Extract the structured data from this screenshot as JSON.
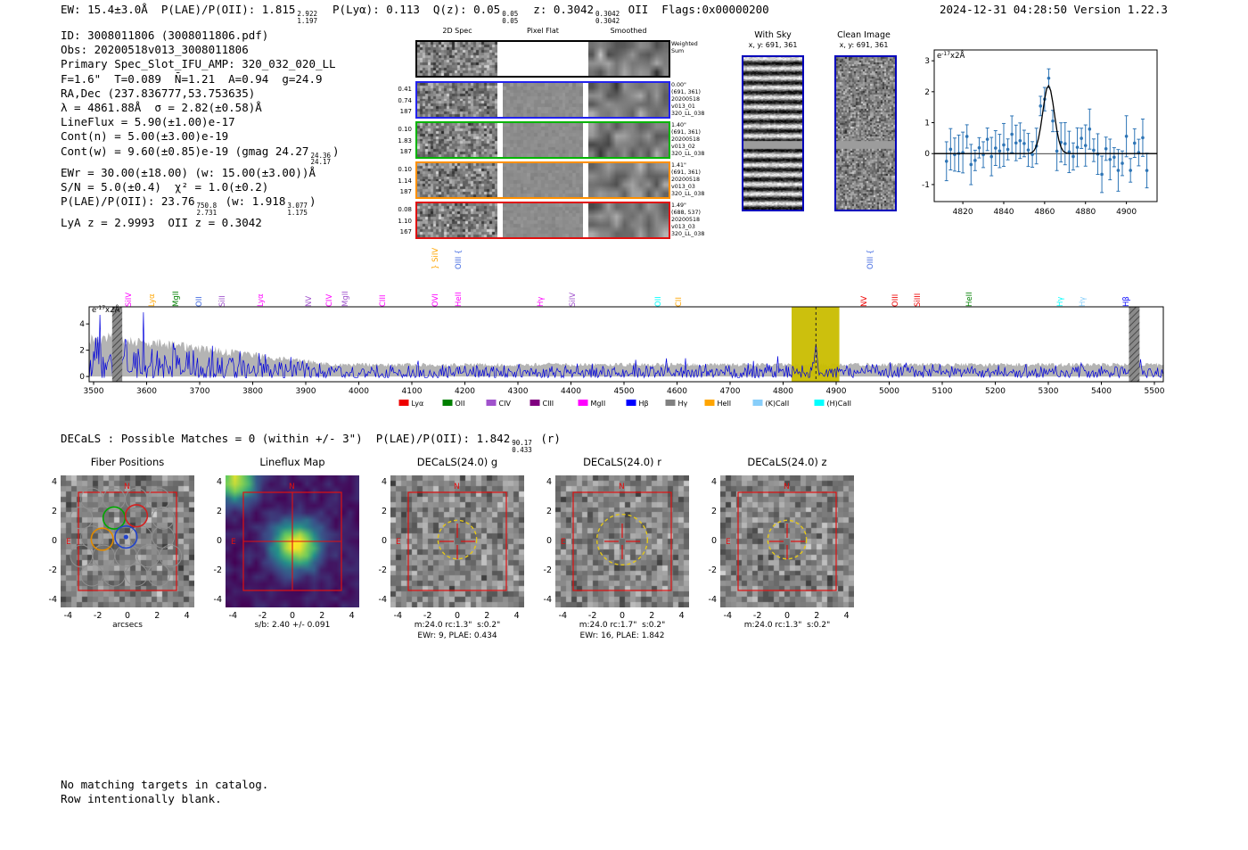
{
  "header": {
    "left_segments": [
      {
        "t": "EW: 15.4±3.0Å  P(LAE)/P(OII): 1.815"
      },
      {
        "sup": "2.922",
        "sub": "1.197"
      },
      {
        "t": "  P(Lyα): 0.113  Q(z): 0.05"
      },
      {
        "sup": "0.05",
        "sub": "0.05"
      },
      {
        "t": "  z: 0.3042"
      },
      {
        "sup": "0.3042",
        "sub": "0.3042"
      },
      {
        "t": " OII  Flags:0x00000200"
      }
    ],
    "right": "2024-12-31 04:28:50  Version 1.22.3"
  },
  "info_lines": [
    [
      {
        "t": "ID: 3008011806 (3008011806.pdf)"
      }
    ],
    [
      {
        "t": "Obs: 20200518v013_3008011806"
      }
    ],
    [
      {
        "t": "Primary Spec_Slot_IFU_AMP: 320_032_020_LL"
      }
    ],
    [
      {
        "t": "F=1.6\"  T=0.089  N̄=1.21  A=0.94  g=24.9"
      }
    ],
    [
      {
        "t": "RA,Dec (237.836777,53.753635)"
      }
    ],
    [
      {
        "t": "λ = 4861.88Å  σ = 2.82(±0.58)Å"
      }
    ],
    [
      {
        "t": "LineFlux = 5.90(±1.00)e-17"
      }
    ],
    [
      {
        "t": "Cont(n) = 5.00(±3.00)e-19"
      }
    ],
    [
      {
        "t": "Cont(w) = 9.60(±0.85)e-19 (gmag 24.27"
      },
      {
        "sup": "24.36",
        "sub": "24.17"
      },
      {
        "t": ")"
      }
    ],
    [
      {
        "t": "EWr = 30.00(±18.00) (w: 15.00(±3.00))Å"
      }
    ],
    [
      {
        "t": "S/N = 5.0(±0.4)  χ² = 1.0(±0.2)"
      }
    ],
    [
      {
        "t": "P(LAE)/P(OII): 23.76"
      },
      {
        "sup": "750.8",
        "sub": "2.731"
      },
      {
        "t": " (w: 1.918"
      },
      {
        "sup": "3.077",
        "sub": "1.175"
      },
      {
        "t": ")"
      }
    ],
    [
      {
        "t": "LyA z = 2.9993  OII z = 0.3042"
      }
    ]
  ],
  "spec2d": {
    "col_headers": [
      "2D Spec",
      "Pixel Flat",
      "Smoothed"
    ],
    "weighted_sum_label": [
      "Weighted",
      "Sum"
    ],
    "rows": [
      {
        "border": "#000000",
        "left": [],
        "right": []
      },
      {
        "border": "#2222ee",
        "left": [
          "0.41",
          "0.74",
          "187"
        ],
        "right": [
          "0.00\"",
          "(691, 361)",
          "20200518",
          "v013_01",
          "320_LL_038"
        ]
      },
      {
        "border": "#00b400",
        "left": [
          "0.10",
          "1.83",
          "187"
        ],
        "right": [
          "1.40\"",
          "(691, 361)",
          "20200518",
          "v013_02",
          "320_LL_038"
        ]
      },
      {
        "border": "#ff9000",
        "left": [
          "0.10",
          "1.14",
          "187"
        ],
        "right": [
          "1.41\"",
          "(691, 361)",
          "20200518",
          "v013_03",
          "320_LL_038"
        ]
      },
      {
        "border": "#e01010",
        "left": [
          "0.08",
          "1.10",
          "167"
        ],
        "right": [
          "1.49\"",
          "(688, 537)",
          "20200518",
          "v013_03",
          "320_LL_038"
        ]
      }
    ]
  },
  "with_sky": {
    "title": "With Sky",
    "coords": "x, y: 691, 361"
  },
  "clean_image": {
    "title": "Clean Image",
    "coords": "x, y: 691, 361"
  },
  "decals_segments": [
    {
      "t": "DECaLS : Possible Matches = 0 (within +/- 3\")  P(LAE)/P(OII): 1.842"
    },
    {
      "sup": "90.17",
      "sub": "0.433"
    },
    {
      "t": " (r)"
    }
  ],
  "footer_lines": [
    "No matching targets in catalog.",
    "Row intentionally blank."
  ],
  "chart_data": [
    {
      "id": "line_fit_zoom",
      "type": "scatter",
      "annotation": {
        "base": "e",
        "exp": "-17",
        "rest": "x2Å"
      },
      "xlim": [
        4806,
        4915
      ],
      "ylim": [
        -1.55,
        3.35
      ],
      "xticks": [
        4820,
        4840,
        4860,
        4880,
        4900
      ],
      "yticks": [
        -1,
        0,
        1,
        2,
        3
      ],
      "fit_curve": {
        "shape": "gaussian",
        "center": 4861.88,
        "sigma": 2.82,
        "amplitude": 2.2,
        "baseline": 0,
        "color": "#000000"
      },
      "data_points": {
        "style": "errorbar",
        "color": "#2e75b6",
        "n": 50,
        "x_start": 4812,
        "x_step": 2,
        "noise_sigma": 0.4,
        "seed": 9,
        "note": "noisy flux samples around 0 rising to ~2.2 at 4861.88, consistent with fitted gaussian"
      }
    },
    {
      "id": "full_spectrum",
      "type": "line",
      "ylabel": {
        "base": "e",
        "exp": "-17",
        "rest": "x2Å"
      },
      "xlim": [
        3492,
        5517
      ],
      "ylim": [
        -0.4,
        5.3
      ],
      "xticks": [
        3500,
        3600,
        3700,
        3800,
        3900,
        4000,
        4100,
        4200,
        4300,
        4400,
        4500,
        4600,
        4700,
        4800,
        4900,
        5000,
        5100,
        5200,
        5300,
        5400,
        5500
      ],
      "yticks": [
        0,
        2,
        4
      ],
      "flux_series": {
        "color": "#0000dd",
        "seed": 23,
        "baseline_level": 0.55,
        "blue_end_max": 3.2,
        "peak": {
          "center": 4861.88,
          "sigma": 2.82,
          "amplitude": 2.0
        }
      },
      "error_band": {
        "color": "#b4b4b4"
      },
      "highlight_band": {
        "x0": 4816,
        "x1": 4906,
        "color": "#c9bd00"
      },
      "detection_line": {
        "x": 4861.88,
        "style": "dashed",
        "color": "#222222"
      },
      "masked_regions": [
        {
          "x0": 3535,
          "x1": 3554
        },
        {
          "x0": 5452,
          "x1": 5472
        }
      ],
      "line_labels": [
        {
          "label": "SiIV",
          "wave": 3564,
          "color": "#ff00ff",
          "tier": 0
        },
        {
          "label": "Lyα",
          "wave": 3607,
          "color": "#ffa500",
          "tier": 0
        },
        {
          "label": "MgII",
          "wave": 3653,
          "color": "#008000",
          "tier": 0
        },
        {
          "label": "OII",
          "wave": 3697,
          "color": "#4169e1",
          "tier": 0
        },
        {
          "label": "SiII",
          "wave": 3740,
          "color": "#a052cc",
          "tier": 0
        },
        {
          "label": "Lyα",
          "wave": 3812,
          "color": "#ff00ff",
          "tier": 0
        },
        {
          "label": "NV",
          "wave": 3904,
          "color": "#a052cc",
          "tier": 0
        },
        {
          "label": "CIV",
          "wave": 3942,
          "color": "#ff00ff",
          "tier": 0
        },
        {
          "label": "MgII",
          "wave": 3972,
          "color": "#a052cc",
          "tier": 0
        },
        {
          "label": "CIII",
          "wave": 4043,
          "color": "#ff00ff",
          "tier": 0
        },
        {
          "label": "OVI",
          "wave": 4142,
          "color": "#ff00ff",
          "tier": 0
        },
        {
          "label": "} SiIV",
          "wave": 4142,
          "color": "#ffa500",
          "tier": 1
        },
        {
          "label": "HeII",
          "wave": 4185,
          "color": "#ff00ff",
          "tier": 0
        },
        {
          "label": "OIII {",
          "wave": 4185,
          "color": "#4169e1",
          "tier": 1
        },
        {
          "label": "Hγ",
          "wave": 4341,
          "color": "#ff00ff",
          "tier": 0
        },
        {
          "label": "SiIV",
          "wave": 4400,
          "color": "#a052cc",
          "tier": 0
        },
        {
          "label": "OII",
          "wave": 4562,
          "color": "#00ffff",
          "tier": 0
        },
        {
          "label": "CII",
          "wave": 4601,
          "color": "#ffa500",
          "tier": 0
        },
        {
          "label": "NV",
          "wave": 4950,
          "color": "#ee0000",
          "tier": 0
        },
        {
          "label": "OIII {",
          "wave": 4962,
          "color": "#4169e1",
          "tier": 1
        },
        {
          "label": "OIII",
          "wave": 5010,
          "color": "#ee0000",
          "tier": 0
        },
        {
          "label": "SiIII",
          "wave": 5052,
          "color": "#ee0000",
          "tier": 0
        },
        {
          "label": "HeII",
          "wave": 5148,
          "color": "#008000",
          "tier": 0
        },
        {
          "label": "Hγ",
          "wave": 5320,
          "color": "#00ffff",
          "tier": 0
        },
        {
          "label": "Hγ",
          "wave": 5362,
          "color": "#87cefa",
          "tier": 0
        },
        {
          "label": "Hβ",
          "wave": 5444,
          "color": "#0000ff",
          "tier": 0
        }
      ],
      "legend": [
        {
          "label": "Lyα",
          "color": "#ee0000"
        },
        {
          "label": "OII",
          "color": "#008000"
        },
        {
          "label": "CIV",
          "color": "#a052cc"
        },
        {
          "label": "CIII",
          "color": "#800080"
        },
        {
          "label": "MgII",
          "color": "#ff00ff"
        },
        {
          "label": "Hβ",
          "color": "#0000ff"
        },
        {
          "label": "Hγ",
          "color": "#808080"
        },
        {
          "label": "HeII",
          "color": "#ffa500"
        },
        {
          "label": "(K)CaII",
          "color": "#87cefa"
        },
        {
          "label": "(H)CaII",
          "color": "#00ffff"
        }
      ],
      "legend_position": "bottom"
    },
    {
      "id": "fiber_positions",
      "type": "image-cutout",
      "title": "Fiber Positions",
      "xlabel": "arcsecs",
      "ticks": [
        -4,
        -2,
        0,
        2,
        4
      ],
      "extent_arcsec": [
        -4.5,
        4.5
      ],
      "overlay": {
        "red_box_half_arcsec": 3.3,
        "fiber_radius_arcsec": 0.74,
        "gray_fibers": [
          [
            -2.4,
            2.9
          ],
          [
            -0.9,
            2.9
          ],
          [
            0.6,
            2.9
          ],
          [
            2.1,
            2.9
          ],
          [
            -3.1,
            1.6
          ],
          [
            2.4,
            1.6
          ],
          [
            -2.4,
            0.3
          ],
          [
            0.9,
            0.3
          ],
          [
            2.4,
            0.3
          ],
          [
            -3.1,
            -1.0
          ],
          [
            -1.6,
            -1.0
          ],
          [
            -0.1,
            -1.0
          ],
          [
            1.4,
            -1.0
          ],
          [
            2.9,
            -1.0
          ],
          [
            -2.4,
            -2.3
          ],
          [
            -0.9,
            -2.3
          ],
          [
            0.6,
            -2.3
          ],
          [
            2.1,
            -2.3
          ]
        ],
        "colored_fibers": [
          {
            "x": -0.9,
            "y": 1.6,
            "color": "#00a800"
          },
          {
            "x": 0.6,
            "y": 1.75,
            "color": "#d42020"
          },
          {
            "x": -1.7,
            "y": 0.15,
            "color": "#e08a00"
          },
          {
            "x": -0.1,
            "y": 0.3,
            "color": "#2244cc"
          }
        ],
        "center_dot": [
          -0.1,
          0.3
        ],
        "center_dot_color": "#2244cc"
      }
    },
    {
      "id": "lineflux_map",
      "type": "heatmap",
      "title": "Lineflux Map",
      "caption": "s/b: 2.40 +/- 0.091",
      "ticks": [
        -4,
        -2,
        0,
        2,
        4
      ],
      "extent_arcsec": [
        -4.5,
        4.5
      ],
      "colormap": "viridis",
      "peak_arcsec": [
        0,
        0
      ],
      "secondary_peak_arcsec": [
        -3.9,
        4.2
      ],
      "compass": {
        "N": "top",
        "E": "left"
      }
    },
    {
      "id": "decals_g",
      "type": "image-cutout",
      "title": "DECaLS(24.0) g",
      "ticks": [
        -4,
        -2,
        0,
        2,
        4
      ],
      "extent_arcsec": [
        -4.5,
        4.5
      ],
      "caption1": "m:24.0 rc:1.3\"  s:0.2\"",
      "caption2": "EWr: 9, PLAE: 0.434",
      "aperture_radius_arcsec": 1.3,
      "compass": {
        "N": "top",
        "E": "left"
      }
    },
    {
      "id": "decals_r",
      "type": "image-cutout",
      "title": "DECaLS(24.0) r",
      "ticks": [
        -4,
        -2,
        0,
        2,
        4
      ],
      "extent_arcsec": [
        -4.5,
        4.5
      ],
      "caption1": "m:24.0 rc:1.7\"  s:0.2\"",
      "caption2": "EWr: 16, PLAE: 1.842",
      "aperture_radius_arcsec": 1.7,
      "compass": {
        "N": "top",
        "E": "left"
      }
    },
    {
      "id": "decals_z",
      "type": "image-cutout",
      "title": "DECaLS(24.0) z",
      "ticks": [
        -4,
        -2,
        0,
        2,
        4
      ],
      "extent_arcsec": [
        -4.5,
        4.5
      ],
      "caption1": "m:24.0 rc:1.3\"  s:0.2\"",
      "aperture_radius_arcsec": 1.3,
      "compass": {
        "N": "top",
        "E": "left"
      }
    }
  ]
}
